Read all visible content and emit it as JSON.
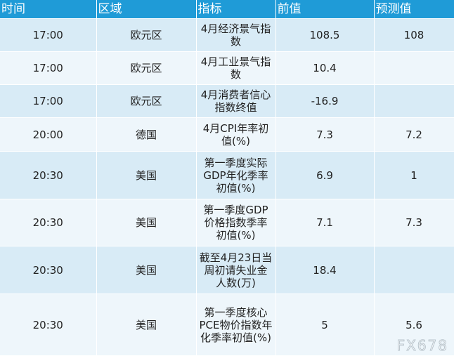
{
  "headers": [
    "时间",
    "区域",
    "指标",
    "前值",
    "预测值"
  ],
  "rows": [
    {
      "time": "17:00",
      "region": "欧元区",
      "indicator": "4月经济景气指数",
      "previous": "108.5",
      "forecast": "108"
    },
    {
      "time": "17:00",
      "region": "欧元区",
      "indicator": "4月工业景气指数",
      "previous": "10.4",
      "forecast": ""
    },
    {
      "time": "17:00",
      "region": "欧元区",
      "indicator": "4月消费者信心指数终值",
      "previous": "-16.9",
      "forecast": ""
    },
    {
      "time": "20:00",
      "region": "德国",
      "indicator": "4月CPI年率初值(%)",
      "previous": "7.3",
      "forecast": "7.2"
    },
    {
      "time": "20:30",
      "region": "美国",
      "indicator": "第一季度实际GDP年化季率初值(%)",
      "previous": "6.9",
      "forecast": "1"
    },
    {
      "time": "20:30",
      "region": "美国",
      "indicator": "第一季度GDP价格指数季率初值(%)",
      "previous": "7.1",
      "forecast": "7.3"
    },
    {
      "time": "20:30",
      "region": "美国",
      "indicator": "截至4月23日当周初请失业金人数(万)",
      "previous": "18.4",
      "forecast": ""
    },
    {
      "time": "20:30",
      "region": "美国",
      "indicator": "第一季度核心PCE物价指数年化季率初值(%)",
      "previous": "5",
      "forecast": "5.6"
    }
  ],
  "watermark": "FX678"
}
